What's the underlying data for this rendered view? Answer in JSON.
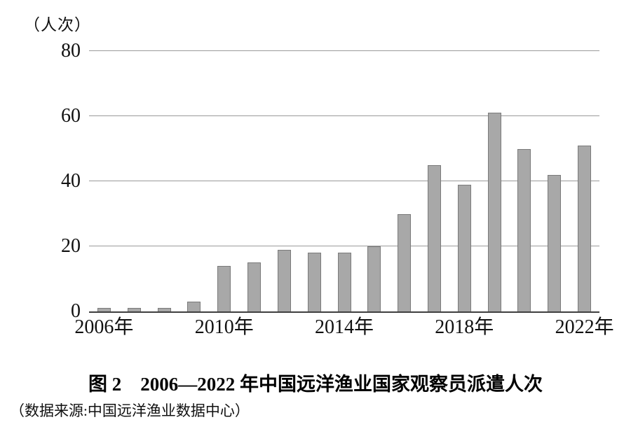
{
  "figure": {
    "unit_label": "（人次）",
    "title": "图 2　2006—2022 年中国远洋渔业国家观察员派遣人次",
    "source": "（数据来源:中国远洋渔业数据中心）"
  },
  "chart_data": {
    "type": "bar",
    "title": "图 2　2006—2022 年中国远洋渔业国家观察员派遣人次",
    "ylabel": "（人次）",
    "source_note": "（数据来源:中国远洋渔业数据中心）",
    "categories": [
      "2006",
      "2007",
      "2008",
      "2009",
      "2010",
      "2011",
      "2012",
      "2013",
      "2014",
      "2015",
      "2016",
      "2017",
      "2018",
      "2019",
      "2020",
      "2021",
      "2022"
    ],
    "values": [
      1,
      1,
      1,
      3,
      14,
      15,
      19,
      18,
      18,
      20,
      30,
      45,
      39,
      61,
      50,
      42,
      51
    ],
    "ylim": [
      0,
      80
    ],
    "yticks": [
      0,
      20,
      40,
      60,
      80
    ],
    "xticks": [
      {
        "index": 0,
        "label": "2006年"
      },
      {
        "index": 4,
        "label": "2010年"
      },
      {
        "index": 8,
        "label": "2014年"
      },
      {
        "index": 12,
        "label": "2018年"
      },
      {
        "index": 16,
        "label": "2022年"
      }
    ],
    "grid": true,
    "legend": "none",
    "bar_color": "#a8a8a8",
    "bar_border_color": "#7a7a7a",
    "gridline_color": "#9a9a9a",
    "axis_color": "#3f3f3f"
  }
}
